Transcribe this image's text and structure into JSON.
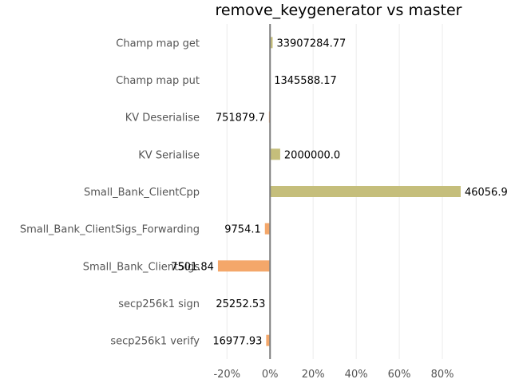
{
  "chart_data": {
    "type": "bar",
    "orientation": "horizontal",
    "title": "remove_keygenerator vs master",
    "xlabel": "",
    "ylabel": "",
    "categories": [
      "Champ map get",
      "Champ map put",
      "KV Deserialise",
      "KV Serialise",
      "Small_Bank_ClientCpp",
      "Small_Bank_ClientSigs_Forwarding",
      "Small_Bank_ClientSigs",
      "secp256k1 sign",
      "secp256k1 verify"
    ],
    "values": [
      1.2,
      0.0,
      -0.5,
      4.7,
      88.5,
      -2.4,
      -24.2,
      -0.3,
      -1.8
    ],
    "data_labels": [
      "33907284.77",
      "1345588.17",
      "751879.7",
      "2000000.0",
      "46056.9",
      "9754.1",
      "7501.84",
      "25252.53",
      "16977.93"
    ],
    "xlim": [
      -29,
      100
    ],
    "x_ticks": [
      -20,
      0,
      20,
      40,
      60,
      80
    ],
    "x_tick_labels": [
      "-20%",
      "0%",
      "20%",
      "40%",
      "60%",
      "80%"
    ],
    "grid": true,
    "legend": "none",
    "colors": {
      "positive": "#c5be7b",
      "negative": "#f4a76a",
      "zero_line": "#7f7f7f",
      "grid": "#ebebeb"
    }
  }
}
